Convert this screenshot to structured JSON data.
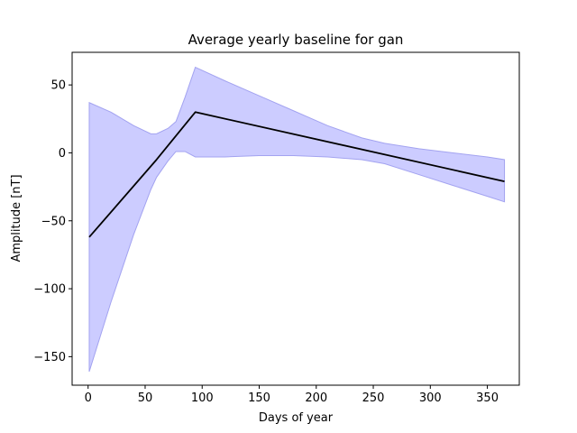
{
  "chart_data": {
    "type": "area",
    "title": "Average yearly baseline for gan",
    "xlabel": "Days of year",
    "ylabel": "Amplitude [nT]",
    "xlim": [
      -14,
      378
    ],
    "ylim": [
      -171,
      74
    ],
    "xticks": [
      0,
      50,
      100,
      150,
      200,
      250,
      300,
      350
    ],
    "yticks": [
      50,
      0,
      -50,
      -100,
      -150
    ],
    "ytick_labels": [
      "50",
      "0",
      "−50",
      "−100",
      "−150"
    ],
    "grid": false,
    "colors": {
      "line": "#000000",
      "band_fill": "#ccccff",
      "band_edge": "#a3a3f0",
      "axes": "#000000"
    },
    "series": [
      {
        "type": "line",
        "x": [
          1,
          60,
          94,
          365
        ],
        "y": [
          -62,
          -5,
          30,
          -21
        ]
      },
      {
        "type": "band",
        "x": [
          1,
          20,
          40,
          55,
          60,
          70,
          77,
          85,
          94,
          120,
          150,
          180,
          210,
          240,
          260,
          290,
          320,
          350,
          365
        ],
        "upper": [
          37,
          30,
          20,
          14,
          14,
          18,
          23,
          41,
          63,
          53,
          42,
          31,
          20,
          11,
          7,
          3,
          0,
          -3,
          -5
        ],
        "lower": [
          -161,
          -110,
          -60,
          -27,
          -18,
          -6,
          1,
          1,
          -3,
          -3,
          -2,
          -2,
          -3,
          -5,
          -8,
          -16,
          -24,
          -32,
          -36
        ]
      }
    ]
  }
}
